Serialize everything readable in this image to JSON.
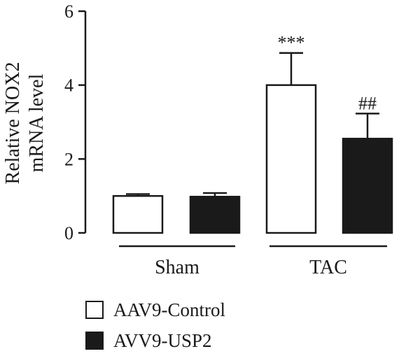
{
  "chart_data": {
    "type": "bar",
    "ylabel": [
      "Relative NOX2",
      "mRNA level"
    ],
    "ylim": [
      0,
      6
    ],
    "yticks": [
      "0",
      "2",
      "4",
      "6"
    ],
    "groups": [
      "Sham",
      "TAC"
    ],
    "series": [
      {
        "name": "AAV9-Control",
        "color": "#ffffff",
        "values": [
          1.0,
          4.0
        ],
        "errors": [
          0.05,
          0.87
        ],
        "annotations": [
          "",
          "***"
        ]
      },
      {
        "name": "AVV9-USP2",
        "color": "#1a1a1a",
        "values": [
          0.98,
          2.55
        ],
        "errors": [
          0.1,
          0.68
        ],
        "annotations": [
          "",
          "##"
        ]
      }
    ],
    "legend_position": "bottom-left"
  }
}
